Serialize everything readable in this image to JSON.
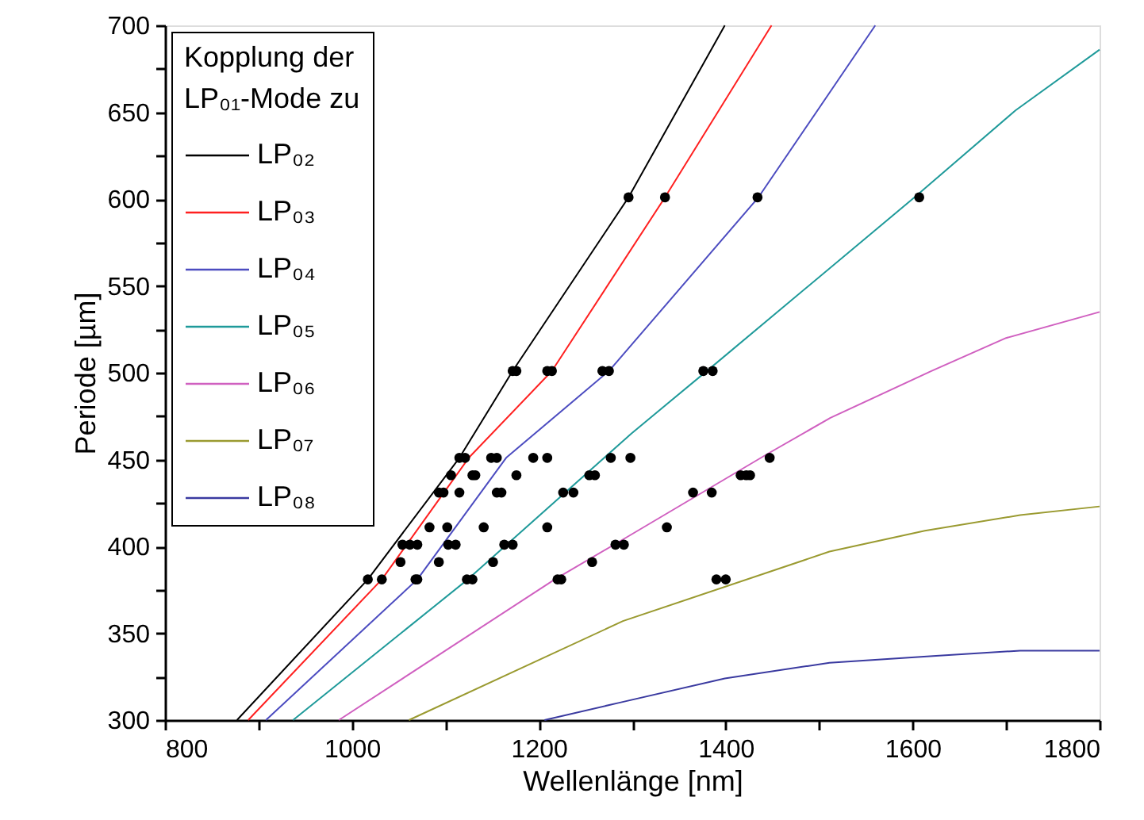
{
  "chart_data": {
    "type": "line",
    "xlabel": "Wellenlänge [nm]",
    "ylabel": "Periode [µm]",
    "legend_title": "Kopplung der LP₀₁-Mode zu",
    "legend": "top left",
    "grid": false,
    "marker": "none",
    "line_style": "solid",
    "xlim": [
      800,
      1800
    ],
    "xticks": [
      800,
      {
        "value": 900,
        "label": null
      },
      1000,
      {
        "value": 1100,
        "label": null
      },
      1200,
      {
        "value": 1300,
        "label": null
      },
      1400,
      {
        "value": 1500,
        "label": null
      },
      1600,
      {
        "value": 1700,
        "label": null
      },
      1800
    ],
    "ylim": [
      300,
      700
    ],
    "yticks": [
      300,
      {
        "value": 325,
        "label": null
      },
      350,
      {
        "value": 375,
        "label": null
      },
      400,
      {
        "value": 425,
        "label": null
      },
      450,
      {
        "value": 475,
        "label": null
      },
      500,
      {
        "value": 525,
        "label": null
      },
      550,
      {
        "value": 575,
        "label": null
      },
      600,
      {
        "value": 625,
        "label": null
      },
      650,
      {
        "value": 675,
        "label": null
      },
      700
    ],
    "series": [
      {
        "name": "LP₀₂",
        "color": "#000000",
        "x": [
          877,
          1017,
          1115,
          1172,
          1296,
          1399
        ],
        "values": [
          300,
          381,
          451,
          501,
          601,
          700
        ]
      },
      {
        "name": "LP₀₃",
        "color": "#ff2020",
        "x": [
          889,
          1032,
          1125,
          1214,
          1335,
          1449
        ],
        "values": [
          300,
          381,
          451,
          501,
          601,
          700
        ]
      },
      {
        "name": "LP₀₄",
        "color": "#4c4cc0",
        "x": [
          908,
          1070,
          1165,
          1275,
          1435,
          1560
        ],
        "values": [
          300,
          381,
          451,
          501,
          601,
          700
        ]
      },
      {
        "name": "LP₀₅",
        "color": "#1f9a9a",
        "x": [
          937,
          1124,
          1299,
          1382,
          1602,
          1710,
          1800
        ],
        "values": [
          300,
          381,
          465,
          502,
          601,
          651,
          686
        ]
      },
      {
        "name": "LP₀₆",
        "color": "#d060c0",
        "x": [
          986,
          1217,
          1290,
          1447,
          1512,
          1620,
          1700,
          1800
        ],
        "values": [
          300,
          381,
          404,
          454,
          474,
          501,
          520,
          535
        ]
      },
      {
        "name": "LP₀₇",
        "color": "#9a9a30",
        "x": [
          1061,
          1290,
          1511,
          1613,
          1715,
          1800
        ],
        "values": [
          300,
          357,
          397,
          409,
          418,
          423
        ]
      },
      {
        "name": "LP₀₈",
        "color": "#3a3aa0",
        "x": [
          1206,
          1286,
          1399,
          1511,
          1625,
          1715,
          1800
        ],
        "values": [
          300,
          310,
          324,
          333,
          337,
          340,
          340
        ]
      },
      {
        "type": "scatter",
        "marker": "circle",
        "color": "#000000",
        "x": [
          1017,
          1032,
          1068,
          1070,
          1123,
          1129,
          1220,
          1224,
          1390,
          1400,
          1052,
          1093,
          1151,
          1257,
          1054,
          1062,
          1070,
          1103,
          1111,
          1163,
          1172,
          1282,
          1291,
          1083,
          1102,
          1141,
          1209,
          1337,
          1093,
          1098,
          1115,
          1155,
          1160,
          1226,
          1237,
          1365,
          1385,
          1106,
          1129,
          1132,
          1176,
          1254,
          1260,
          1416,
          1422,
          1426,
          1115,
          1121,
          1149,
          1155,
          1194,
          1209,
          1277,
          1298,
          1447,
          1172,
          1176,
          1209,
          1214,
          1268,
          1275,
          1376,
          1386,
          1296,
          1335,
          1434,
          1607
        ],
        "values": [
          381,
          381,
          381,
          381,
          381,
          381,
          381,
          381,
          381,
          381,
          391,
          391,
          391,
          391,
          401,
          401,
          401,
          401,
          401,
          401,
          401,
          401,
          401,
          411,
          411,
          411,
          411,
          411,
          431,
          431,
          431,
          431,
          431,
          431,
          431,
          431,
          431,
          441,
          441,
          441,
          441,
          441,
          441,
          441,
          441,
          441,
          451,
          451,
          451,
          451,
          451,
          451,
          451,
          451,
          451,
          501,
          501,
          501,
          501,
          501,
          501,
          501,
          501,
          601,
          601,
          601,
          601
        ]
      }
    ]
  }
}
